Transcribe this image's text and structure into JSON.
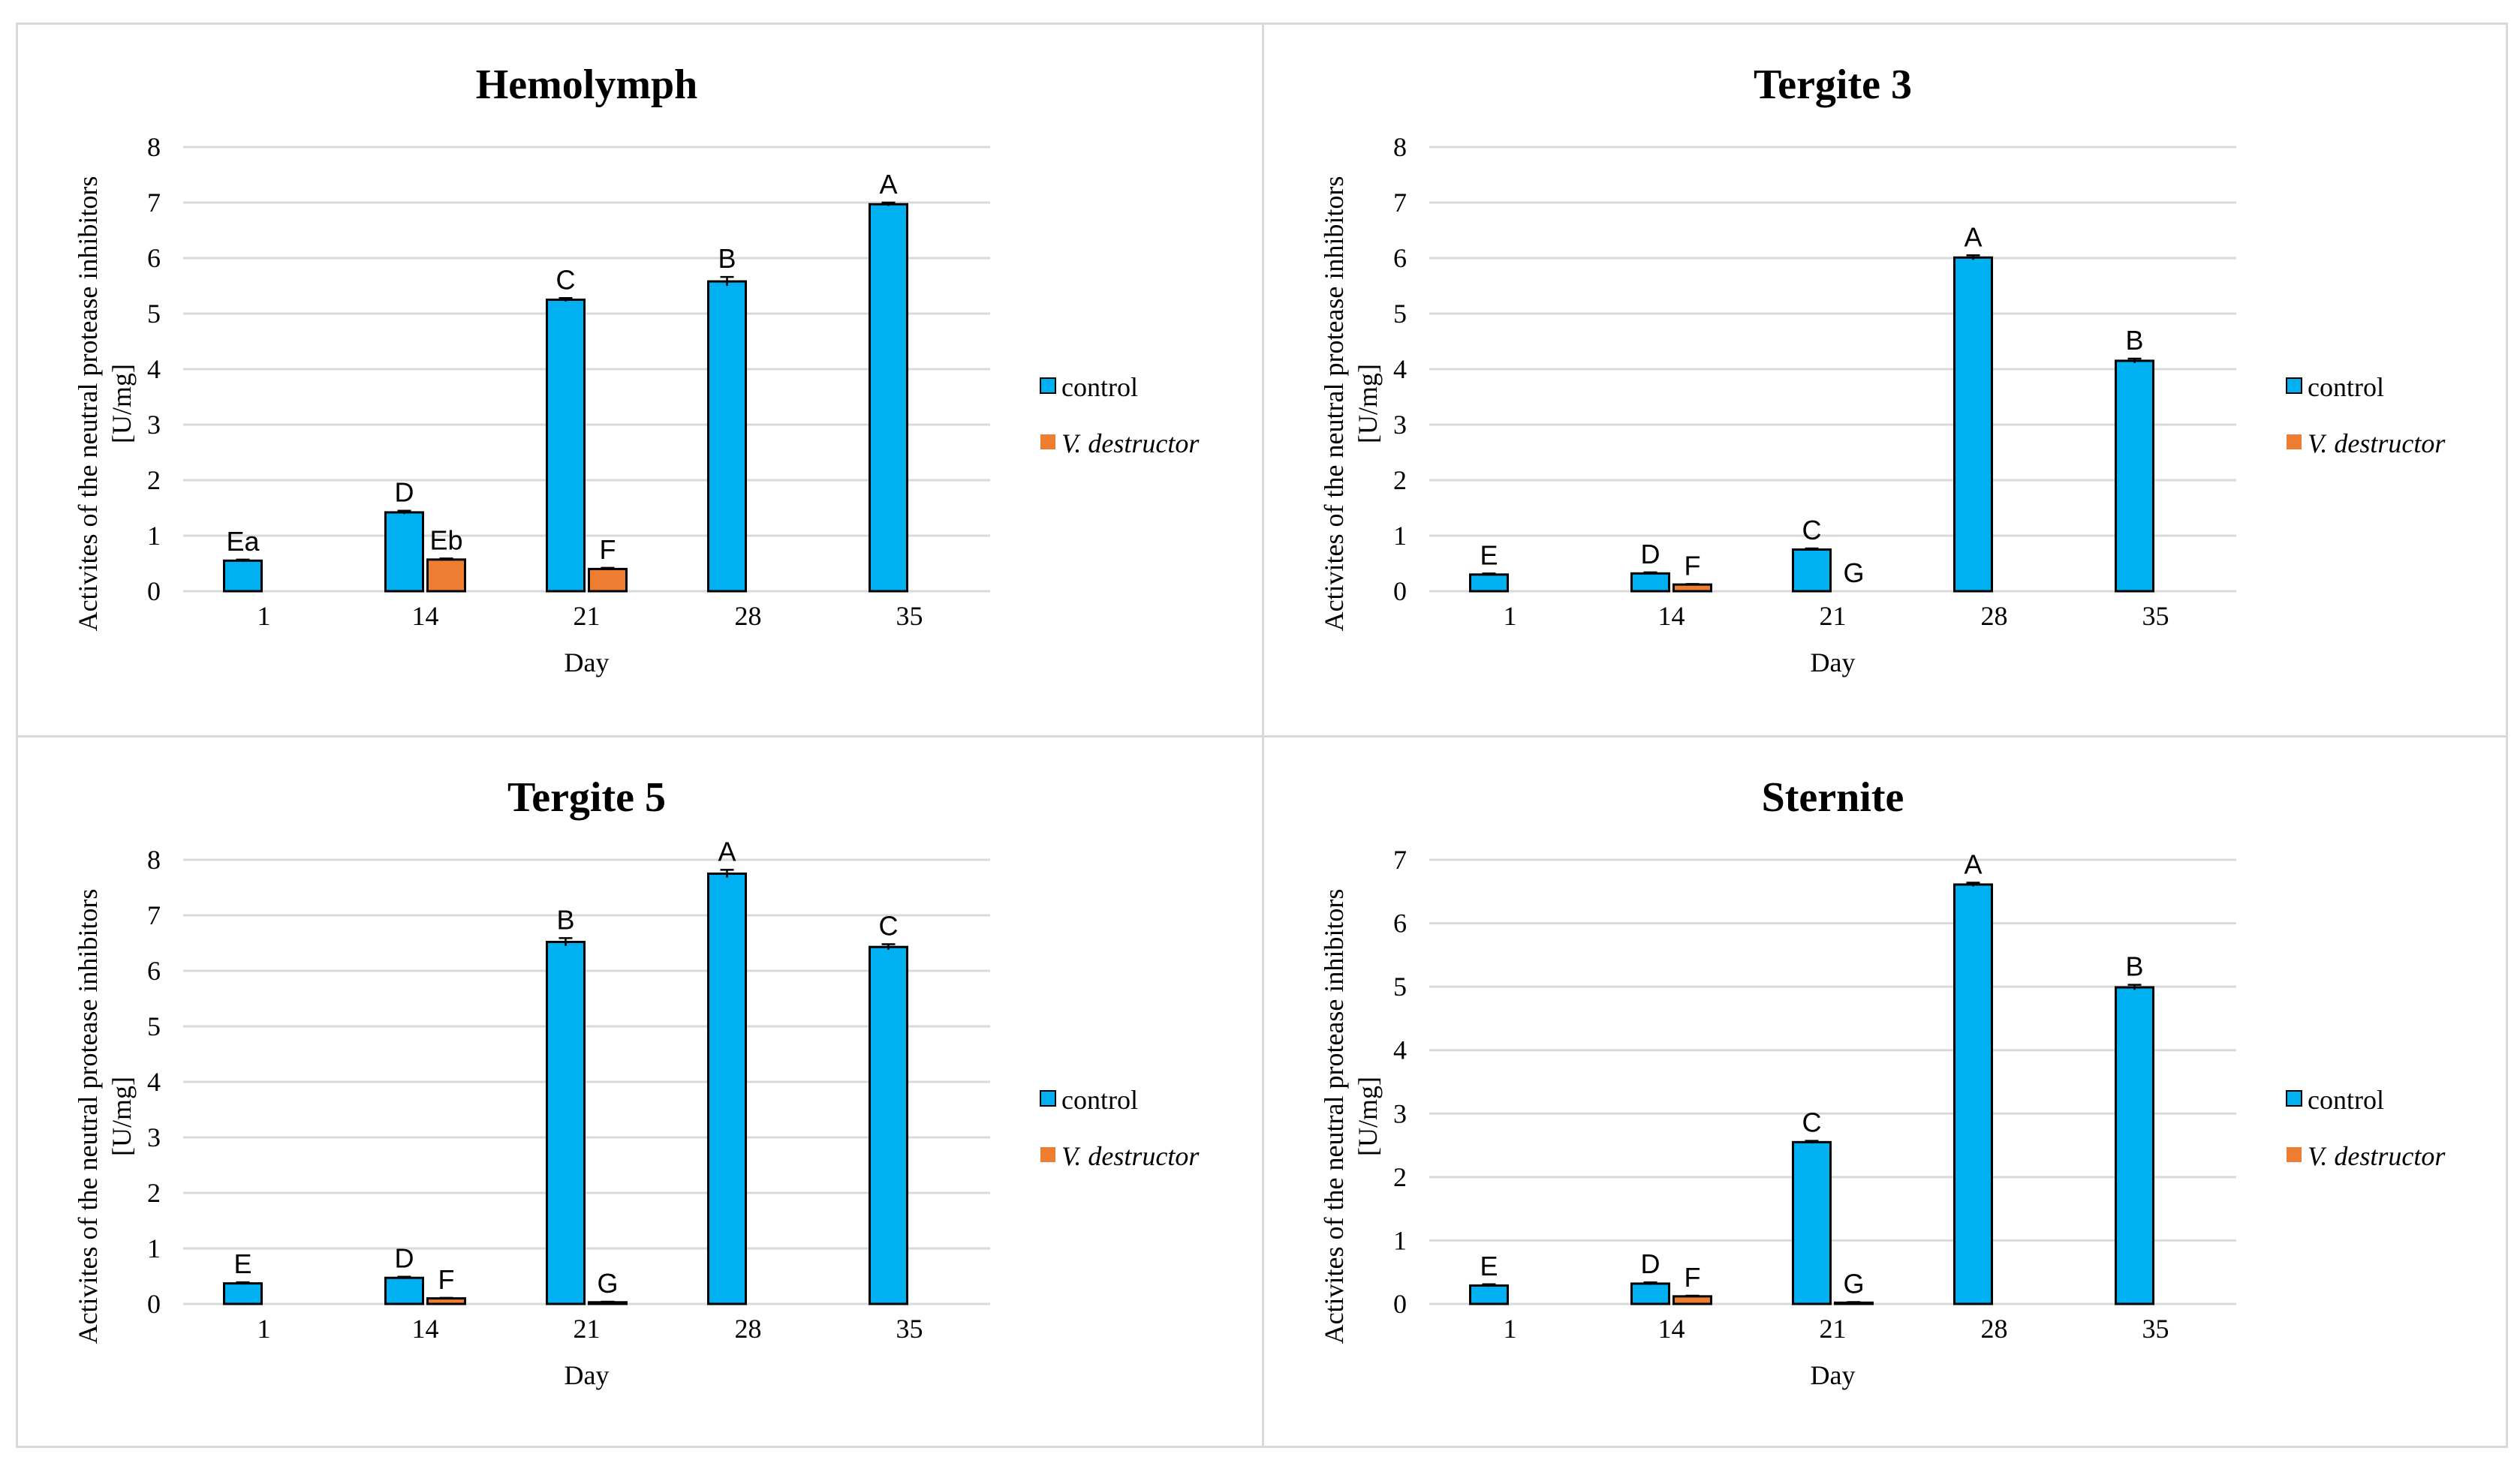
{
  "colors": {
    "control": "#00b0f0",
    "destructor": "#ed7d31"
  },
  "legend": [
    {
      "label": "control",
      "italic": false,
      "color_key": "control"
    },
    {
      "label": "V. destructor",
      "italic": true,
      "color_key": "destructor"
    }
  ],
  "chart_data": [
    {
      "type": "bar",
      "title": "Hemolymph",
      "xlabel": "Day",
      "ylabel_lines": [
        "Activites of the neutral protease inhibitors",
        "[U/mg]"
      ],
      "categories": [
        "1",
        "14",
        "21",
        "28",
        "35"
      ],
      "ylim": [
        0,
        8
      ],
      "yticks": [
        "0",
        "1",
        "2",
        "3",
        "4",
        "5",
        "6",
        "7",
        "8"
      ],
      "series": [
        {
          "name": "control",
          "values": [
            0.55,
            1.42,
            5.25,
            5.58,
            6.97
          ],
          "errors": [
            0.02,
            0.03,
            0.03,
            0.08,
            0.03
          ],
          "labels": [
            "Ea",
            "D",
            "C",
            "B",
            "A"
          ]
        },
        {
          "name": "V. destructor",
          "values": [
            0,
            0.57,
            0.4,
            0,
            0
          ],
          "errors": [
            0,
            0.02,
            0.02,
            0,
            0
          ],
          "labels": [
            "",
            "Eb",
            "F",
            "",
            ""
          ]
        }
      ]
    },
    {
      "type": "bar",
      "title": "Tergite 3",
      "xlabel": "Day",
      "ylabel_lines": [
        "Activites of the neutral protease inhibitors",
        "[U/mg]"
      ],
      "categories": [
        "1",
        "14",
        "21",
        "28",
        "35"
      ],
      "ylim": [
        0,
        8
      ],
      "yticks": [
        "0",
        "1",
        "2",
        "3",
        "4",
        "5",
        "6",
        "7",
        "8"
      ],
      "series": [
        {
          "name": "control",
          "values": [
            0.3,
            0.32,
            0.75,
            6.01,
            4.15
          ],
          "errors": [
            0.02,
            0.02,
            0.02,
            0.04,
            0.04
          ],
          "labels": [
            "E",
            "D",
            "C",
            "A",
            "B"
          ]
        },
        {
          "name": "V. destructor",
          "values": [
            0,
            0.12,
            0,
            0,
            0
          ],
          "errors": [
            0,
            0.01,
            0,
            0,
            0
          ],
          "labels": [
            "",
            "F",
            "G",
            "",
            ""
          ]
        }
      ]
    },
    {
      "type": "bar",
      "title": "Tergite 5",
      "xlabel": "Day",
      "ylabel_lines": [
        "Activites of the neutral protease inhibitors",
        "[U/mg]"
      ],
      "categories": [
        "1",
        "14",
        "21",
        "28",
        "35"
      ],
      "ylim": [
        0,
        8
      ],
      "yticks": [
        "0",
        "1",
        "2",
        "3",
        "4",
        "5",
        "6",
        "7",
        "8"
      ],
      "series": [
        {
          "name": "control",
          "values": [
            0.37,
            0.47,
            6.52,
            7.75,
            6.43
          ],
          "errors": [
            0.02,
            0.02,
            0.07,
            0.07,
            0.05
          ],
          "labels": [
            "E",
            "D",
            "B",
            "A",
            "C"
          ]
        },
        {
          "name": "V. destructor",
          "values": [
            0,
            0.1,
            0.03,
            0,
            0
          ],
          "errors": [
            0,
            0.01,
            0.01,
            0,
            0
          ],
          "labels": [
            "",
            "F",
            "G",
            "",
            ""
          ]
        }
      ]
    },
    {
      "type": "bar",
      "title": "Sternite",
      "xlabel": "Day",
      "ylabel_lines": [
        "Activites of the neutral protease inhibitors",
        "[U/mg]"
      ],
      "categories": [
        "1",
        "14",
        "21",
        "28",
        "35"
      ],
      "ylim": [
        0,
        7
      ],
      "yticks": [
        "0",
        "1",
        "2",
        "3",
        "4",
        "5",
        "6",
        "7"
      ],
      "series": [
        {
          "name": "control",
          "values": [
            0.29,
            0.32,
            2.55,
            6.61,
            4.99
          ],
          "errors": [
            0.02,
            0.02,
            0.02,
            0.03,
            0.04
          ],
          "labels": [
            "E",
            "D",
            "C",
            "A",
            "B"
          ]
        },
        {
          "name": "V. destructor",
          "values": [
            0,
            0.12,
            0.02,
            0,
            0
          ],
          "errors": [
            0,
            0.01,
            0.01,
            0,
            0
          ],
          "labels": [
            "",
            "F",
            "G",
            "",
            ""
          ]
        }
      ]
    }
  ]
}
